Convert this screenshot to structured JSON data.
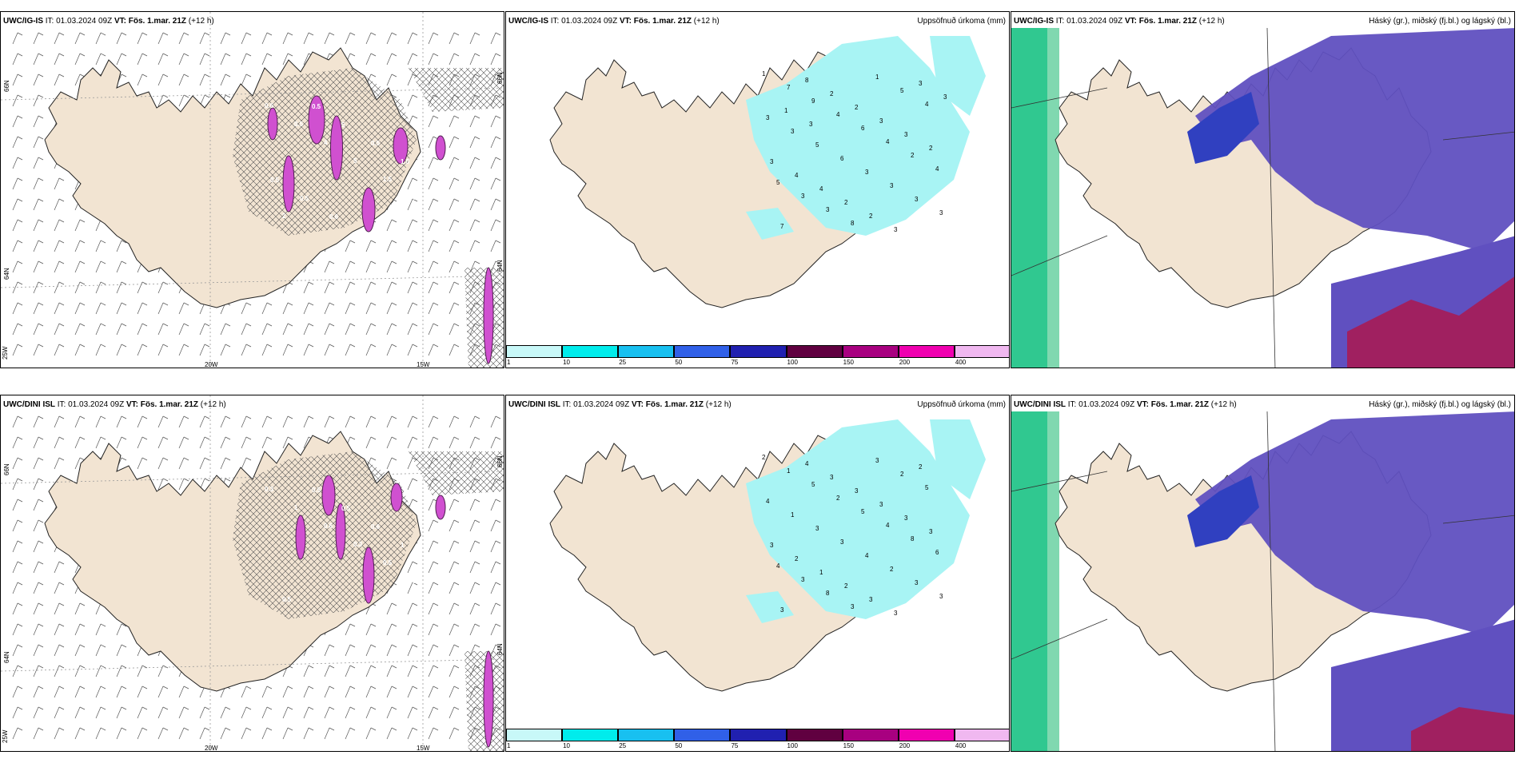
{
  "rows": [
    {
      "model": "UWC/IG-IS",
      "panels": [
        {
          "model": "UWC/IG-IS",
          "it_label": "IT:",
          "it": "01.03.2024 09Z",
          "vt_label": "VT:",
          "vt": "Fös. 1.mar. 21Z",
          "lead": "(+12 h)",
          "variable": ""
        },
        {
          "model": "UWC/IG-IS",
          "it_label": "IT:",
          "it": "01.03.2024 09Z",
          "vt_label": "VT:",
          "vt": "Fös. 1.mar. 21Z",
          "lead": "(+12 h)",
          "variable": "Uppsöfnuð úrkoma (mm)"
        },
        {
          "model": "UWC/IG-IS",
          "it_label": "IT:",
          "it": "01.03.2024 09Z",
          "vt_label": "VT:",
          "vt": "Fös. 1.mar. 21Z",
          "lead": "(+12 h)",
          "variable": "Háský (gr.), miðský (fj.bl.) og lágský (bl.)"
        }
      ],
      "precip_numbers": [
        "1",
        "7",
        "9",
        "4",
        "6",
        "4",
        "2",
        "4",
        "5",
        "3",
        "3",
        "8",
        "1",
        "5",
        "4",
        "3",
        "3",
        "5",
        "6",
        "3",
        "3",
        "3",
        "3",
        "7",
        "8",
        "2",
        "2",
        "3",
        "3",
        "2",
        "3",
        "4",
        "4",
        "2",
        "2",
        "3",
        "3",
        "3",
        "1",
        "3"
      ],
      "wind_numbers": [
        "0.6",
        "0.5",
        "4",
        "5",
        "1.5",
        "0.5",
        "2",
        "0.5",
        "5",
        "0.5",
        "1.0",
        "0.5",
        "0.5",
        "0.6"
      ]
    },
    {
      "model": "UWC/DINI ISL",
      "panels": [
        {
          "model": "UWC/DINI ISL",
          "it_label": "IT:",
          "it": "01.03.2024 09Z",
          "vt_label": "VT:",
          "vt": "Fös. 1.mar. 21Z",
          "lead": "(+12 h)",
          "variable": ""
        },
        {
          "model": "UWC/DINI ISL",
          "it_label": "IT:",
          "it": "01.03.2024 09Z",
          "vt_label": "VT:",
          "vt": "Fös. 1.mar. 21Z",
          "lead": "(+12 h)",
          "variable": "Uppsöfnuð úrkoma (mm)"
        },
        {
          "model": "UWC/DINI ISL",
          "it_label": "IT:",
          "it": "01.03.2024 09Z",
          "vt_label": "VT:",
          "vt": "Fös. 1.mar. 21Z",
          "lead": "(+12 h)",
          "variable": "Háský (gr.), miðský (fj.bl.) og lágský (bl.)"
        }
      ],
      "precip_numbers": [
        "2",
        "1",
        "5",
        "2",
        "5",
        "4",
        "8",
        "6",
        "4",
        "3",
        "8",
        "3",
        "3",
        "2",
        "5",
        "4",
        "1",
        "3",
        "3",
        "4",
        "2",
        "3",
        "3",
        "3",
        "4",
        "3",
        "3",
        "3",
        "3",
        "3",
        "3",
        "2",
        "1",
        "2",
        "3",
        "3",
        "2"
      ],
      "wind_numbers": [
        "0.3",
        "1",
        "0.6",
        "0.3",
        "0.5",
        "1",
        "0.5",
        "0.5",
        "0.5",
        "0.6",
        "1"
      ]
    }
  ],
  "axis_labels": {
    "lat_top": "66N",
    "lat_bottom": "64N",
    "lon_left": "25W",
    "lon_mid": "20W",
    "lon_right": "15W",
    "mid_right": "66N",
    "mid_right2": "64N"
  },
  "colorbar": {
    "ticks": [
      "1",
      "10",
      "25",
      "50",
      "75",
      "100",
      "150",
      "200",
      "400"
    ],
    "colors": [
      "#c8f8f8",
      "#00ecec",
      "#18c0f0",
      "#3060e8",
      "#2020b0",
      "#600040",
      "#a80080",
      "#f000b0",
      "#f0b8f0"
    ]
  },
  "colors": {
    "land": "#f2e4d2",
    "precip": "#a8f4f4",
    "cloud_high": "#30c890",
    "cloud_mid": "#3040c0",
    "cloud_low": "#6050c0",
    "wind_magenta": "#d050d0",
    "cloud_red": "#a02060"
  }
}
